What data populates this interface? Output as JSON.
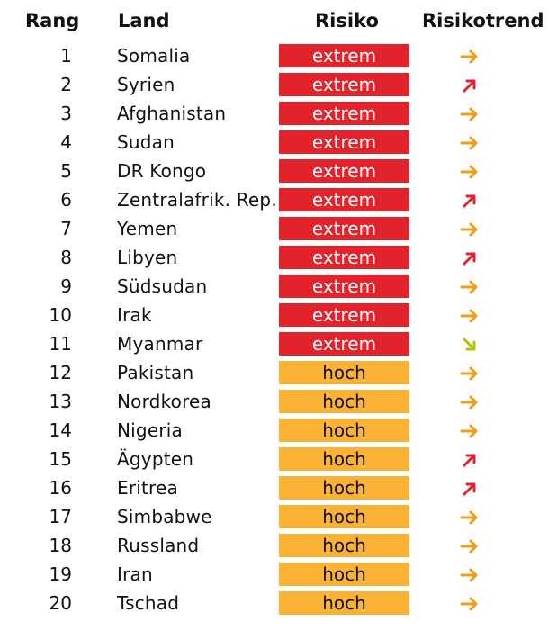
{
  "header": {
    "rank": "Rang",
    "country": "Land",
    "risk": "Risiko",
    "trend": "Risikotrend"
  },
  "colors": {
    "extrem": "#e3232c",
    "hoch": "#f9b233",
    "trend_stable": "#f39c12",
    "trend_up": "#e3232c",
    "trend_down": "#b5c400"
  },
  "rows": [
    {
      "rank": "1",
      "country": "Somalia",
      "risk": "extrem",
      "trend": "stable"
    },
    {
      "rank": "2",
      "country": "Syrien",
      "risk": "extrem",
      "trend": "up"
    },
    {
      "rank": "3",
      "country": "Afghanistan",
      "risk": "extrem",
      "trend": "stable"
    },
    {
      "rank": "4",
      "country": "Sudan",
      "risk": "extrem",
      "trend": "stable"
    },
    {
      "rank": "5",
      "country": "DR Kongo",
      "risk": "extrem",
      "trend": "stable"
    },
    {
      "rank": "6",
      "country": "Zentralafrik. Rep.",
      "risk": "extrem",
      "trend": "up"
    },
    {
      "rank": "7",
      "country": "Yemen",
      "risk": "extrem",
      "trend": "stable"
    },
    {
      "rank": "8",
      "country": "Libyen",
      "risk": "extrem",
      "trend": "up"
    },
    {
      "rank": "9",
      "country": "Südsudan",
      "risk": "extrem",
      "trend": "stable"
    },
    {
      "rank": "10",
      "country": "Irak",
      "risk": "extrem",
      "trend": "stable"
    },
    {
      "rank": "11",
      "country": "Myanmar",
      "risk": "extrem",
      "trend": "down"
    },
    {
      "rank": "12",
      "country": "Pakistan",
      "risk": "hoch",
      "trend": "stable"
    },
    {
      "rank": "13",
      "country": "Nordkorea",
      "risk": "hoch",
      "trend": "stable"
    },
    {
      "rank": "14",
      "country": "Nigeria",
      "risk": "hoch",
      "trend": "stable"
    },
    {
      "rank": "15",
      "country": "Ägypten",
      "risk": "hoch",
      "trend": "up"
    },
    {
      "rank": "16",
      "country": "Eritrea",
      "risk": "hoch",
      "trend": "up"
    },
    {
      "rank": "17",
      "country": "Simbabwe",
      "risk": "hoch",
      "trend": "stable"
    },
    {
      "rank": "18",
      "country": "Russland",
      "risk": "hoch",
      "trend": "stable"
    },
    {
      "rank": "19",
      "country": "Iran",
      "risk": "hoch",
      "trend": "stable"
    },
    {
      "rank": "20",
      "country": "Tschad",
      "risk": "hoch",
      "trend": "stable"
    }
  ]
}
